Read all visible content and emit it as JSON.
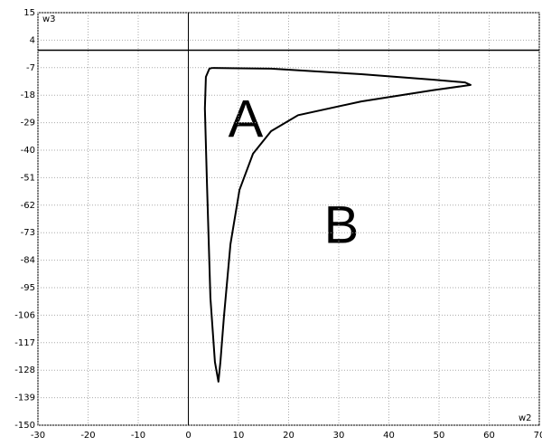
{
  "chart_data": {
    "type": "line",
    "x_label": "w2",
    "y_label": "w3",
    "annotations": [
      "A",
      "B"
    ],
    "series": [
      {
        "color": "#000000",
        "x": [
          4.8,
          16.5,
          34.5,
          48.9,
          55.2,
          56.3,
          48.9,
          34.5,
          21.9,
          16.5,
          12.9,
          10.2,
          8.4,
          7.1,
          6.4,
          6.0,
          5.3,
          4.4,
          3.7,
          3.3,
          3.5,
          4.2,
          4.8
        ],
        "values": [
          -7.1,
          -7.4,
          -9.6,
          -11.8,
          -12.9,
          -13.9,
          -16,
          -20.5,
          -26,
          -32.4,
          -41.4,
          -55.9,
          -77.6,
          -106.6,
          -124.6,
          -132.6,
          -124.7,
          -99,
          -52.3,
          -23.3,
          -10.7,
          -7.4,
          -7.1
        ]
      }
    ],
    "xlim": [
      -30,
      70
    ],
    "xticks": [
      -30,
      -20,
      -10,
      0,
      10,
      20,
      30,
      40,
      50,
      60,
      70
    ],
    "ylim": [
      -150,
      15
    ],
    "yticks": [
      15,
      4,
      -7,
      -18,
      -29,
      -40,
      -51,
      -62,
      -73,
      -84,
      -95,
      -106,
      -117,
      -128,
      -139,
      -150
    ],
    "grid": true
  }
}
